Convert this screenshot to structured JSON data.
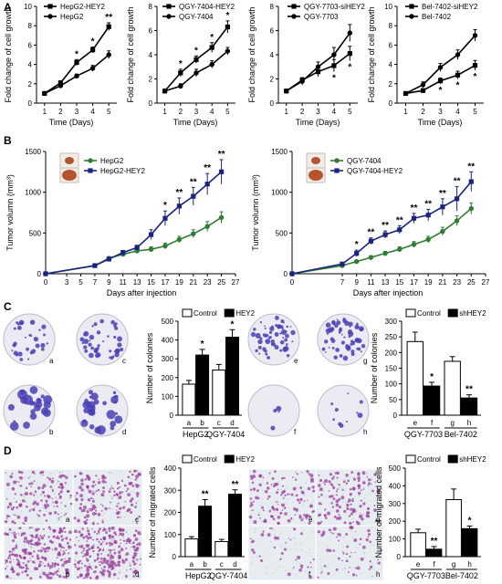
{
  "panels": {
    "A": "A",
    "B": "B",
    "C": "C",
    "D": "D"
  },
  "chart_data": [
    {
      "id": "A1",
      "type": "line",
      "x": [
        1,
        2,
        3,
        4,
        5
      ],
      "xlim": [
        0.5,
        5.5
      ],
      "ylim": [
        0,
        10
      ],
      "yticks": [
        0,
        2,
        4,
        6,
        8,
        10
      ],
      "xlabel": "Time (Days)",
      "ylabel": "Fold change of cell growth",
      "series": [
        {
          "name": "HepG2-HEY2",
          "values": [
            1,
            2.1,
            4.2,
            5.5,
            7.9
          ],
          "err": [
            0.1,
            0.2,
            0.3,
            0.3,
            0.4
          ],
          "color": "#000000",
          "marker": "square"
        },
        {
          "name": "HepG2",
          "values": [
            1,
            1.8,
            2.8,
            3.6,
            5.0
          ],
          "err": [
            0.1,
            0.2,
            0.2,
            0.3,
            0.4
          ],
          "color": "#000000",
          "marker": "circle"
        }
      ],
      "annotations": [
        {
          "x": 3,
          "text": "*"
        },
        {
          "x": 4,
          "text": "*"
        },
        {
          "x": 5,
          "text": "**"
        }
      ]
    },
    {
      "id": "A2",
      "type": "line",
      "x": [
        1,
        2,
        3,
        4,
        5
      ],
      "xlim": [
        0.5,
        5.5
      ],
      "ylim": [
        0,
        8
      ],
      "yticks": [
        0,
        2,
        4,
        6,
        8
      ],
      "xlabel": "Time (Days)",
      "ylabel": "Fold change of cell growth",
      "series": [
        {
          "name": "QGY-7404-HEY2",
          "values": [
            1,
            2.5,
            3.6,
            4.6,
            6.3
          ],
          "err": [
            0.1,
            0.3,
            0.3,
            0.4,
            0.5
          ],
          "color": "#000000",
          "marker": "square"
        },
        {
          "name": "QGY-7404",
          "values": [
            1,
            1.4,
            2.5,
            3.2,
            4.3
          ],
          "err": [
            0.1,
            0.2,
            0.3,
            0.3,
            0.3
          ],
          "color": "#000000",
          "marker": "circle"
        }
      ],
      "annotations": [
        {
          "x": 2,
          "text": "*"
        },
        {
          "x": 3,
          "text": "*"
        },
        {
          "x": 4,
          "text": "*"
        },
        {
          "x": 5,
          "text": "*"
        }
      ]
    },
    {
      "id": "A3",
      "type": "line",
      "x": [
        1,
        2,
        3,
        4,
        5
      ],
      "xlim": [
        0.5,
        5.5
      ],
      "ylim": [
        0,
        8
      ],
      "yticks": [
        0,
        2,
        4,
        6,
        8
      ],
      "xlabel": "Time (Days)",
      "ylabel": "Fold change of cell growth",
      "series": [
        {
          "name": "QGY-7703-siHEY2",
          "values": [
            1,
            1.9,
            2.6,
            3.1,
            4.1
          ],
          "err": [
            0.1,
            0.2,
            0.4,
            0.5,
            0.6
          ],
          "color": "#000000",
          "marker": "square"
        },
        {
          "name": "QGY-7703",
          "values": [
            1,
            1.8,
            3.0,
            4.0,
            5.8
          ],
          "err": [
            0.1,
            0.3,
            0.4,
            0.6,
            0.7
          ],
          "color": "#000000",
          "marker": "circle"
        }
      ],
      "annotations": [
        {
          "x": 4,
          "text": "*",
          "below": true
        },
        {
          "x": 5,
          "text": "*",
          "below": true
        }
      ]
    },
    {
      "id": "A4",
      "type": "line",
      "x": [
        1,
        2,
        3,
        4,
        5
      ],
      "xlim": [
        0.5,
        5.5
      ],
      "ylim": [
        0,
        10
      ],
      "yticks": [
        0,
        2,
        4,
        6,
        8,
        10
      ],
      "xlabel": "Time (Days)",
      "ylabel": "Fold change of cell growth",
      "series": [
        {
          "name": "Bel-7402-siHEY2",
          "values": [
            1,
            1.3,
            2.3,
            2.9,
            3.9
          ],
          "err": [
            0.1,
            0.2,
            0.3,
            0.4,
            0.5
          ],
          "color": "#000000",
          "marker": "square"
        },
        {
          "name": "Bel-7402",
          "values": [
            1,
            1.9,
            3.7,
            5.0,
            7.0
          ],
          "err": [
            0.1,
            0.3,
            0.4,
            0.5,
            0.6
          ],
          "color": "#000000",
          "marker": "circle"
        }
      ],
      "annotations": [
        {
          "x": 3,
          "text": "*",
          "below": true
        },
        {
          "x": 4,
          "text": "*",
          "below": true
        },
        {
          "x": 5,
          "text": "*",
          "below": true
        }
      ]
    },
    {
      "id": "B1",
      "type": "line",
      "x": [
        0,
        7,
        9,
        11,
        13,
        15,
        17,
        19,
        21,
        23,
        25
      ],
      "xticks": [
        0,
        3,
        5,
        7,
        9,
        11,
        13,
        15,
        17,
        19,
        21,
        23,
        25,
        27
      ],
      "xlim": [
        0,
        27
      ],
      "ylim": [
        0,
        1500
      ],
      "yticks": [
        0,
        500,
        1000,
        1500
      ],
      "xlabel": "Days after injection",
      "ylabel": "Tumor volumn (mm³)",
      "series": [
        {
          "name": "HepG2",
          "values": [
            0,
            100,
            190,
            240,
            280,
            300,
            340,
            420,
            490,
            580,
            690
          ],
          "err": [
            0,
            10,
            15,
            20,
            25,
            30,
            35,
            40,
            50,
            60,
            70
          ],
          "color": "#2e7d32",
          "marker": "circle"
        },
        {
          "name": "HepG2-HEY2",
          "values": [
            0,
            100,
            180,
            260,
            320,
            480,
            680,
            830,
            950,
            1100,
            1250
          ],
          "err": [
            0,
            10,
            15,
            25,
            30,
            60,
            90,
            100,
            110,
            130,
            150
          ],
          "color": "#1a237e",
          "marker": "square"
        }
      ],
      "annotations": [
        {
          "x": 17,
          "text": "*"
        },
        {
          "x": 19,
          "text": "**"
        },
        {
          "x": 21,
          "text": "**"
        },
        {
          "x": 23,
          "text": "**"
        },
        {
          "x": 25,
          "text": "**"
        }
      ]
    },
    {
      "id": "B2",
      "type": "line",
      "x": [
        0,
        7,
        9,
        11,
        13,
        15,
        17,
        19,
        21,
        23,
        25
      ],
      "xticks": [
        0,
        7,
        9,
        11,
        13,
        15,
        17,
        19,
        21,
        23,
        25,
        27
      ],
      "xlim": [
        0,
        27
      ],
      "ylim": [
        0,
        1500
      ],
      "yticks": [
        0,
        500,
        1000,
        1500
      ],
      "xlabel": "Days after injection",
      "ylabel": "Tumor volumn (mm³)",
      "series": [
        {
          "name": "QGY-7404",
          "values": [
            0,
            100,
            150,
            200,
            250,
            300,
            360,
            420,
            520,
            650,
            800
          ],
          "err": [
            0,
            10,
            15,
            20,
            25,
            30,
            35,
            40,
            50,
            60,
            70
          ],
          "color": "#2e7d32",
          "marker": "circle"
        },
        {
          "name": "QGY-7404-HEY2",
          "values": [
            0,
            120,
            250,
            400,
            480,
            540,
            680,
            720,
            820,
            920,
            1130
          ],
          "err": [
            0,
            15,
            40,
            40,
            45,
            50,
            60,
            70,
            100,
            150,
            120
          ],
          "color": "#1a237e",
          "marker": "square"
        }
      ],
      "annotations": [
        {
          "x": 9,
          "text": "*"
        },
        {
          "x": 11,
          "text": "**"
        },
        {
          "x": 13,
          "text": "**"
        },
        {
          "x": 15,
          "text": "**"
        },
        {
          "x": 17,
          "text": "**"
        },
        {
          "x": 19,
          "text": "**"
        },
        {
          "x": 21,
          "text": "**"
        },
        {
          "x": 23,
          "text": "**"
        },
        {
          "x": 25,
          "text": "**"
        }
      ]
    },
    {
      "id": "C1",
      "type": "bar",
      "categories": [
        "a",
        "b",
        "c",
        "d"
      ],
      "groups": [
        "HepG2",
        "QGY-7404"
      ],
      "values": [
        165,
        320,
        240,
        415
      ],
      "err": [
        20,
        30,
        30,
        40
      ],
      "fills": [
        "#ffffff",
        "#000000",
        "#ffffff",
        "#000000"
      ],
      "ylim": [
        0,
        500
      ],
      "yticks": [
        0,
        100,
        200,
        300,
        400,
        500
      ],
      "ylabel": "Number of colonies",
      "legend": [
        {
          "label": "Control",
          "fill": "#ffffff"
        },
        {
          "label": "HEY2",
          "fill": "#000000"
        }
      ],
      "annotations": [
        {
          "i": 1,
          "text": "*"
        },
        {
          "i": 3,
          "text": "*"
        }
      ]
    },
    {
      "id": "C2",
      "type": "bar",
      "categories": [
        "e",
        "f",
        "g",
        "h"
      ],
      "groups": [
        "QGY-7703",
        "Bel-7402"
      ],
      "values": [
        235,
        93,
        172,
        55
      ],
      "err": [
        30,
        12,
        15,
        10
      ],
      "fills": [
        "#ffffff",
        "#000000",
        "#ffffff",
        "#000000"
      ],
      "ylim": [
        0,
        300
      ],
      "yticks": [
        0,
        50,
        100,
        150,
        200,
        250,
        300
      ],
      "ylabel": "Number of colonies",
      "legend": [
        {
          "label": "Control",
          "fill": "#ffffff"
        },
        {
          "label": "shHEY2",
          "fill": "#000000"
        }
      ],
      "annotations": [
        {
          "i": 1,
          "text": "*"
        },
        {
          "i": 3,
          "text": "**"
        }
      ]
    },
    {
      "id": "D1",
      "type": "bar",
      "categories": [
        "a",
        "b",
        "c",
        "d"
      ],
      "groups": [
        "HepG2",
        "QGY-7404"
      ],
      "values": [
        80,
        228,
        68,
        282
      ],
      "err": [
        10,
        30,
        10,
        20
      ],
      "fills": [
        "#ffffff",
        "#000000",
        "#ffffff",
        "#000000"
      ],
      "ylim": [
        0,
        400
      ],
      "yticks": [
        0,
        100,
        200,
        300,
        400
      ],
      "ylabel": "Number of migrated cells",
      "legend": [
        {
          "label": "Control",
          "fill": "#ffffff"
        },
        {
          "label": "HEY2",
          "fill": "#000000"
        }
      ],
      "annotations": [
        {
          "i": 1,
          "text": "**"
        },
        {
          "i": 3,
          "text": "**"
        }
      ]
    },
    {
      "id": "D2",
      "type": "bar",
      "categories": [
        "e",
        "f",
        "g",
        "h"
      ],
      "groups": [
        "QGY-7703",
        "Bel-7402"
      ],
      "values": [
        135,
        42,
        322,
        158
      ],
      "err": [
        20,
        15,
        60,
        15
      ],
      "fills": [
        "#ffffff",
        "#000000",
        "#ffffff",
        "#000000"
      ],
      "ylim": [
        0,
        500
      ],
      "yticks": [
        0,
        100,
        200,
        300,
        400,
        500
      ],
      "ylabel": "Number of migrated cells",
      "legend": [
        {
          "label": "Control",
          "fill": "#ffffff"
        },
        {
          "label": "shHEY2",
          "fill": "#000000"
        }
      ],
      "annotations": [
        {
          "i": 1,
          "text": "**"
        },
        {
          "i": 3,
          "text": "*"
        }
      ]
    }
  ],
  "images": {
    "colony_labels_left": [
      "a",
      "c",
      "b",
      "d"
    ],
    "colony_labels_right": [
      "e",
      "g",
      "f",
      "h"
    ],
    "migration_labels_left": [
      "a",
      "c",
      "b",
      "d"
    ],
    "migration_labels_right": [
      "e",
      "g",
      "f",
      "h"
    ]
  },
  "colors": {
    "green": "#2e7d32",
    "navy": "#1a237e",
    "colony": "#4a3fb5",
    "stain": "#9c3c9c"
  }
}
